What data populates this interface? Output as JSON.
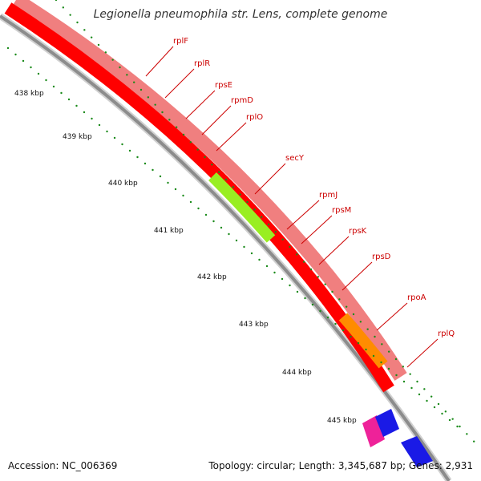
{
  "title": "Legionella pneumophila str. Lens, complete genome",
  "accession": "Accession: NC_006369",
  "summary": "Topology: circular; Length: 3,345,687 bp; Genes: 2,931",
  "colors": {
    "background": "#ffffff",
    "backbone": "#8c8c8c",
    "backbone_shadow": "#d0d0d0",
    "tick": "#1a8a1a",
    "gene_red": "#ff0000",
    "gene_pink": "#f07f7f",
    "gene_green": "#99ee22",
    "gene_orange": "#ff8c00",
    "gene_blue": "#1a1ae6",
    "gene_magenta": "#ee2299",
    "label_red": "#cc0000"
  },
  "axis": {
    "tick_labels": [
      "438 kbp",
      "439 kbp",
      "440 kbp",
      "441 kbp",
      "442 kbp",
      "443 kbp",
      "444 kbp",
      "445 kbp"
    ]
  },
  "genes": [
    {
      "name": "rplF"
    },
    {
      "name": "rplR"
    },
    {
      "name": "rpsE"
    },
    {
      "name": "rpmD"
    },
    {
      "name": "rplO"
    },
    {
      "name": "secY"
    },
    {
      "name": "rpmJ"
    },
    {
      "name": "rpsM"
    },
    {
      "name": "rpsK"
    },
    {
      "name": "rpsD"
    },
    {
      "name": "rpoA"
    },
    {
      "name": "rplQ"
    }
  ]
}
